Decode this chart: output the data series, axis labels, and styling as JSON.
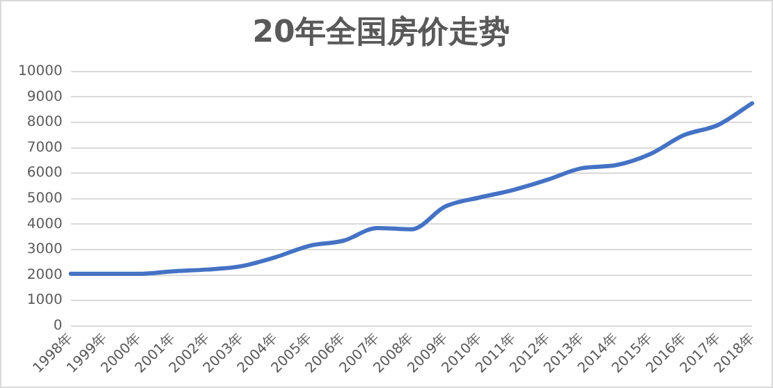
{
  "chart_data": {
    "type": "line",
    "title": "20年全国房价走势",
    "categories": [
      "1998年",
      "1999年",
      "2000年",
      "2001年",
      "2002年",
      "2003年",
      "2004年",
      "2005年",
      "2006年",
      "2007年",
      "2008年",
      "2009年",
      "2010年",
      "2011年",
      "2012年",
      "2013年",
      "2014年",
      "2015年",
      "2016年",
      "2017年",
      "2018年"
    ],
    "series": [
      {
        "color": "#4472c4",
        "values": [
          2050,
          2050,
          2050,
          2150,
          2220,
          2350,
          2700,
          3150,
          3350,
          3850,
          3800,
          4700,
          5050,
          5350,
          5750,
          6200,
          6320,
          6750,
          7500,
          7900,
          8750
        ]
      }
    ],
    "ylim": [
      0,
      10000
    ],
    "yticks": [
      0,
      1000,
      2000,
      3000,
      4000,
      5000,
      6000,
      7000,
      8000,
      9000,
      10000
    ],
    "grid": "y",
    "legend": false,
    "marker": "none",
    "line_style": "solid"
  }
}
